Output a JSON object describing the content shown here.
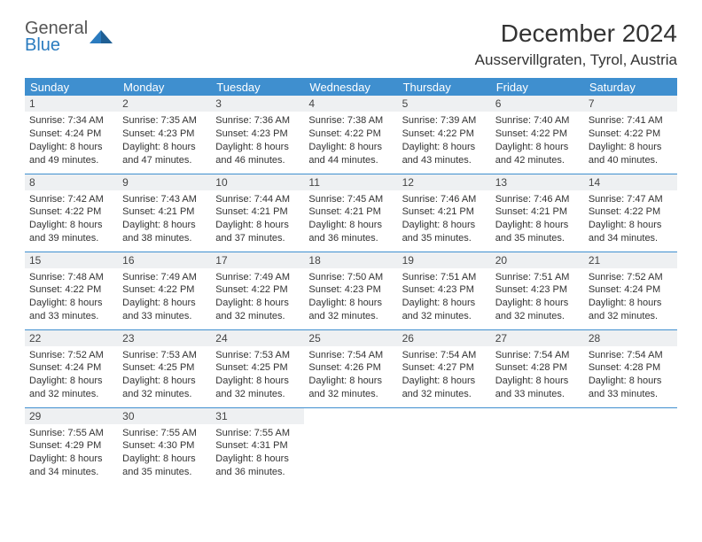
{
  "logo": {
    "line1": "General",
    "line2": "Blue"
  },
  "title": "December 2024",
  "location": "Ausservillgraten, Tyrol, Austria",
  "colors": {
    "header_bg": "#3f8fcf",
    "header_text": "#ffffff",
    "daynum_bg": "#eef0f2",
    "row_border": "#3f8fcf",
    "logo_gray": "#555555",
    "logo_blue": "#2a7bbf",
    "body_text": "#333333"
  },
  "weekdays": [
    "Sunday",
    "Monday",
    "Tuesday",
    "Wednesday",
    "Thursday",
    "Friday",
    "Saturday"
  ],
  "weeks": [
    [
      {
        "n": "1",
        "sunrise": "Sunrise: 7:34 AM",
        "sunset": "Sunset: 4:24 PM",
        "day1": "Daylight: 8 hours",
        "day2": "and 49 minutes."
      },
      {
        "n": "2",
        "sunrise": "Sunrise: 7:35 AM",
        "sunset": "Sunset: 4:23 PM",
        "day1": "Daylight: 8 hours",
        "day2": "and 47 minutes."
      },
      {
        "n": "3",
        "sunrise": "Sunrise: 7:36 AM",
        "sunset": "Sunset: 4:23 PM",
        "day1": "Daylight: 8 hours",
        "day2": "and 46 minutes."
      },
      {
        "n": "4",
        "sunrise": "Sunrise: 7:38 AM",
        "sunset": "Sunset: 4:22 PM",
        "day1": "Daylight: 8 hours",
        "day2": "and 44 minutes."
      },
      {
        "n": "5",
        "sunrise": "Sunrise: 7:39 AM",
        "sunset": "Sunset: 4:22 PM",
        "day1": "Daylight: 8 hours",
        "day2": "and 43 minutes."
      },
      {
        "n": "6",
        "sunrise": "Sunrise: 7:40 AM",
        "sunset": "Sunset: 4:22 PM",
        "day1": "Daylight: 8 hours",
        "day2": "and 42 minutes."
      },
      {
        "n": "7",
        "sunrise": "Sunrise: 7:41 AM",
        "sunset": "Sunset: 4:22 PM",
        "day1": "Daylight: 8 hours",
        "day2": "and 40 minutes."
      }
    ],
    [
      {
        "n": "8",
        "sunrise": "Sunrise: 7:42 AM",
        "sunset": "Sunset: 4:22 PM",
        "day1": "Daylight: 8 hours",
        "day2": "and 39 minutes."
      },
      {
        "n": "9",
        "sunrise": "Sunrise: 7:43 AM",
        "sunset": "Sunset: 4:21 PM",
        "day1": "Daylight: 8 hours",
        "day2": "and 38 minutes."
      },
      {
        "n": "10",
        "sunrise": "Sunrise: 7:44 AM",
        "sunset": "Sunset: 4:21 PM",
        "day1": "Daylight: 8 hours",
        "day2": "and 37 minutes."
      },
      {
        "n": "11",
        "sunrise": "Sunrise: 7:45 AM",
        "sunset": "Sunset: 4:21 PM",
        "day1": "Daylight: 8 hours",
        "day2": "and 36 minutes."
      },
      {
        "n": "12",
        "sunrise": "Sunrise: 7:46 AM",
        "sunset": "Sunset: 4:21 PM",
        "day1": "Daylight: 8 hours",
        "day2": "and 35 minutes."
      },
      {
        "n": "13",
        "sunrise": "Sunrise: 7:46 AM",
        "sunset": "Sunset: 4:21 PM",
        "day1": "Daylight: 8 hours",
        "day2": "and 35 minutes."
      },
      {
        "n": "14",
        "sunrise": "Sunrise: 7:47 AM",
        "sunset": "Sunset: 4:22 PM",
        "day1": "Daylight: 8 hours",
        "day2": "and 34 minutes."
      }
    ],
    [
      {
        "n": "15",
        "sunrise": "Sunrise: 7:48 AM",
        "sunset": "Sunset: 4:22 PM",
        "day1": "Daylight: 8 hours",
        "day2": "and 33 minutes."
      },
      {
        "n": "16",
        "sunrise": "Sunrise: 7:49 AM",
        "sunset": "Sunset: 4:22 PM",
        "day1": "Daylight: 8 hours",
        "day2": "and 33 minutes."
      },
      {
        "n": "17",
        "sunrise": "Sunrise: 7:49 AM",
        "sunset": "Sunset: 4:22 PM",
        "day1": "Daylight: 8 hours",
        "day2": "and 32 minutes."
      },
      {
        "n": "18",
        "sunrise": "Sunrise: 7:50 AM",
        "sunset": "Sunset: 4:23 PM",
        "day1": "Daylight: 8 hours",
        "day2": "and 32 minutes."
      },
      {
        "n": "19",
        "sunrise": "Sunrise: 7:51 AM",
        "sunset": "Sunset: 4:23 PM",
        "day1": "Daylight: 8 hours",
        "day2": "and 32 minutes."
      },
      {
        "n": "20",
        "sunrise": "Sunrise: 7:51 AM",
        "sunset": "Sunset: 4:23 PM",
        "day1": "Daylight: 8 hours",
        "day2": "and 32 minutes."
      },
      {
        "n": "21",
        "sunrise": "Sunrise: 7:52 AM",
        "sunset": "Sunset: 4:24 PM",
        "day1": "Daylight: 8 hours",
        "day2": "and 32 minutes."
      }
    ],
    [
      {
        "n": "22",
        "sunrise": "Sunrise: 7:52 AM",
        "sunset": "Sunset: 4:24 PM",
        "day1": "Daylight: 8 hours",
        "day2": "and 32 minutes."
      },
      {
        "n": "23",
        "sunrise": "Sunrise: 7:53 AM",
        "sunset": "Sunset: 4:25 PM",
        "day1": "Daylight: 8 hours",
        "day2": "and 32 minutes."
      },
      {
        "n": "24",
        "sunrise": "Sunrise: 7:53 AM",
        "sunset": "Sunset: 4:25 PM",
        "day1": "Daylight: 8 hours",
        "day2": "and 32 minutes."
      },
      {
        "n": "25",
        "sunrise": "Sunrise: 7:54 AM",
        "sunset": "Sunset: 4:26 PM",
        "day1": "Daylight: 8 hours",
        "day2": "and 32 minutes."
      },
      {
        "n": "26",
        "sunrise": "Sunrise: 7:54 AM",
        "sunset": "Sunset: 4:27 PM",
        "day1": "Daylight: 8 hours",
        "day2": "and 32 minutes."
      },
      {
        "n": "27",
        "sunrise": "Sunrise: 7:54 AM",
        "sunset": "Sunset: 4:28 PM",
        "day1": "Daylight: 8 hours",
        "day2": "and 33 minutes."
      },
      {
        "n": "28",
        "sunrise": "Sunrise: 7:54 AM",
        "sunset": "Sunset: 4:28 PM",
        "day1": "Daylight: 8 hours",
        "day2": "and 33 minutes."
      }
    ],
    [
      {
        "n": "29",
        "sunrise": "Sunrise: 7:55 AM",
        "sunset": "Sunset: 4:29 PM",
        "day1": "Daylight: 8 hours",
        "day2": "and 34 minutes."
      },
      {
        "n": "30",
        "sunrise": "Sunrise: 7:55 AM",
        "sunset": "Sunset: 4:30 PM",
        "day1": "Daylight: 8 hours",
        "day2": "and 35 minutes."
      },
      {
        "n": "31",
        "sunrise": "Sunrise: 7:55 AM",
        "sunset": "Sunset: 4:31 PM",
        "day1": "Daylight: 8 hours",
        "day2": "and 36 minutes."
      },
      {
        "empty": true
      },
      {
        "empty": true
      },
      {
        "empty": true
      },
      {
        "empty": true
      }
    ]
  ]
}
